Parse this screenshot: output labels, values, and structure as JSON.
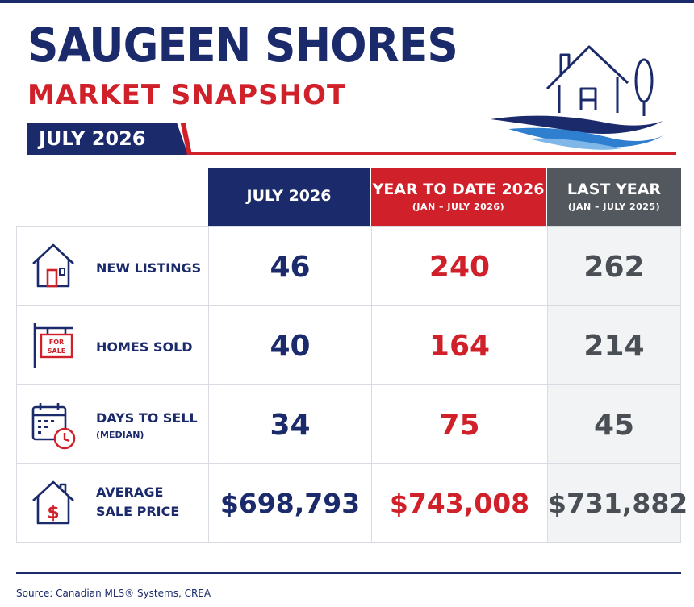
{
  "header": {
    "title": "SAUGEEN SHORES",
    "subtitle": "MARKET SNAPSHOT",
    "period": "JULY 2026"
  },
  "table": {
    "columns": [
      {
        "title": "JULY 2026",
        "sub": ""
      },
      {
        "title": "YEAR TO DATE 2026",
        "sub": "(JAN – JULY 2026)"
      },
      {
        "title": "LAST YEAR",
        "sub": "(JAN – JULY 2025)"
      }
    ],
    "rows": [
      {
        "icon": "house-icon",
        "label": "NEW LISTINGS",
        "sub": "",
        "july": "46",
        "ytd": "240",
        "last_year": "262"
      },
      {
        "icon": "for-sale-sign-icon",
        "label": "HOMES SOLD",
        "sub": "",
        "july": "40",
        "ytd": "164",
        "last_year": "214"
      },
      {
        "icon": "calendar-clock-icon",
        "label": "DAYS TO SELL",
        "sub": "(MEDIAN)",
        "july": "34",
        "ytd": "75",
        "last_year": "45"
      },
      {
        "icon": "house-dollar-icon",
        "label": "AVERAGE",
        "label2": "SALE PRICE",
        "sub": "",
        "july": "$698,793",
        "ytd": "$743,008",
        "last_year": "$731,882"
      }
    ],
    "for_sale_sign_text": "FOR SALE"
  },
  "footer": {
    "source": "Source: Canadian MLS® Systems, CREA"
  },
  "colors": {
    "navy": "#1b2a6b",
    "red": "#d0202a",
    "gray": "#53575e"
  }
}
